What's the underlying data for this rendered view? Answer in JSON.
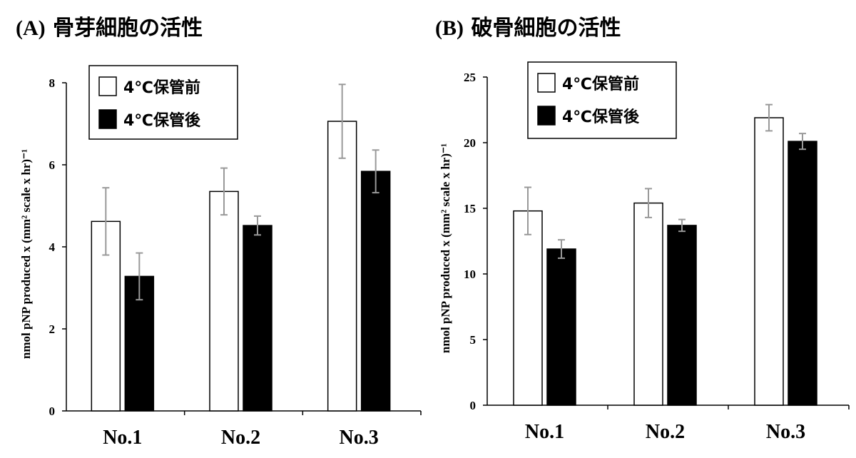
{
  "chart_data": [
    {
      "type": "bar",
      "panel_label": "(A)",
      "title": "骨芽細胞の活性",
      "ylabel": "nmol pNP produced x (mm² scale x hr)⁻¹",
      "categories": [
        "No.1",
        "No.2",
        "No.3"
      ],
      "ylim": [
        0,
        8
      ],
      "yticks": [
        0,
        2,
        4,
        6,
        8
      ],
      "series": [
        {
          "name": "4℃保管前",
          "color": "#ffffff",
          "values": [
            4.62,
            5.35,
            7.06
          ],
          "errors": [
            0.82,
            0.57,
            0.9
          ]
        },
        {
          "name": "4℃保管後",
          "color": "#000000",
          "values": [
            3.28,
            4.52,
            5.84
          ],
          "errors": [
            0.57,
            0.23,
            0.52
          ]
        }
      ],
      "legend_position": "top-left"
    },
    {
      "type": "bar",
      "panel_label": "(B)",
      "title": "破骨細胞の活性",
      "ylabel": "nmol pNP produced x (mm² scale x hr)⁻¹",
      "categories": [
        "No.1",
        "No.2",
        "No.3"
      ],
      "ylim": [
        0,
        25
      ],
      "yticks": [
        0,
        5,
        10,
        15,
        20,
        25
      ],
      "series": [
        {
          "name": "4℃保管前",
          "color": "#ffffff",
          "values": [
            14.8,
            15.4,
            21.9
          ],
          "errors": [
            1.8,
            1.1,
            1.0
          ]
        },
        {
          "name": "4℃保管後",
          "color": "#000000",
          "values": [
            11.9,
            13.7,
            20.1
          ],
          "errors": [
            0.7,
            0.45,
            0.6
          ]
        }
      ],
      "legend_position": "top-left"
    }
  ]
}
